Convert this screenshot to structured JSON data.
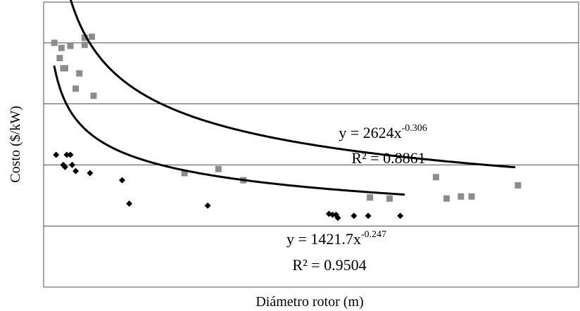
{
  "chart_data": {
    "type": "scatter",
    "xlabel": "Diámetro rotor (m)",
    "ylabel": "Costo ($/kW)",
    "grid": true,
    "x_tick_labels": false,
    "y_tick_labels": false,
    "xlim": [
      0,
      150
    ],
    "ylim": [
      0,
      1400
    ],
    "series": [
      {
        "marker": "square",
        "color": "#8c8c8c",
        "points": [
          [
            3,
            1200
          ],
          [
            4.5,
            1125
          ],
          [
            5,
            1175
          ],
          [
            5.5,
            1075
          ],
          [
            6,
            1075
          ],
          [
            7.5,
            1185
          ],
          [
            9,
            975
          ],
          [
            10,
            1050
          ],
          [
            11.5,
            1225
          ],
          [
            11.5,
            1190
          ],
          [
            13.5,
            1230
          ],
          [
            14,
            940
          ],
          [
            39.5,
            560
          ],
          [
            49,
            580
          ],
          [
            56,
            525
          ],
          [
            91.5,
            440
          ],
          [
            97,
            435
          ],
          [
            110,
            540
          ],
          [
            113,
            435
          ],
          [
            117,
            445
          ],
          [
            120,
            445
          ],
          [
            133,
            500
          ]
        ],
        "trendline": {
          "equation_prefix": "y = 2624x",
          "equation_exponent": "-0.306",
          "r2_label": "R² = 0.8861",
          "a": 2624,
          "b": -0.306,
          "x_from": 3.2,
          "x_to": 132
        }
      },
      {
        "marker": "diamond",
        "color": "#000000",
        "points": [
          [
            3.5,
            650
          ],
          [
            5.5,
            600
          ],
          [
            6,
            590
          ],
          [
            6.5,
            650
          ],
          [
            7.5,
            650
          ],
          [
            8,
            600
          ],
          [
            9,
            570
          ],
          [
            13,
            560
          ],
          [
            22,
            525
          ],
          [
            24,
            410
          ],
          [
            46,
            400
          ],
          [
            80,
            360
          ],
          [
            81,
            355
          ],
          [
            82,
            355
          ],
          [
            82.5,
            340
          ],
          [
            87,
            350
          ],
          [
            91,
            350
          ],
          [
            100,
            350
          ]
        ],
        "trendline": {
          "equation_prefix": "y = 1421.7x",
          "equation_exponent": "-0.247",
          "r2_label": "R² = 0.9504",
          "a": 1421.7,
          "b": -0.247,
          "x_from": 3,
          "x_to": 101
        }
      }
    ]
  }
}
